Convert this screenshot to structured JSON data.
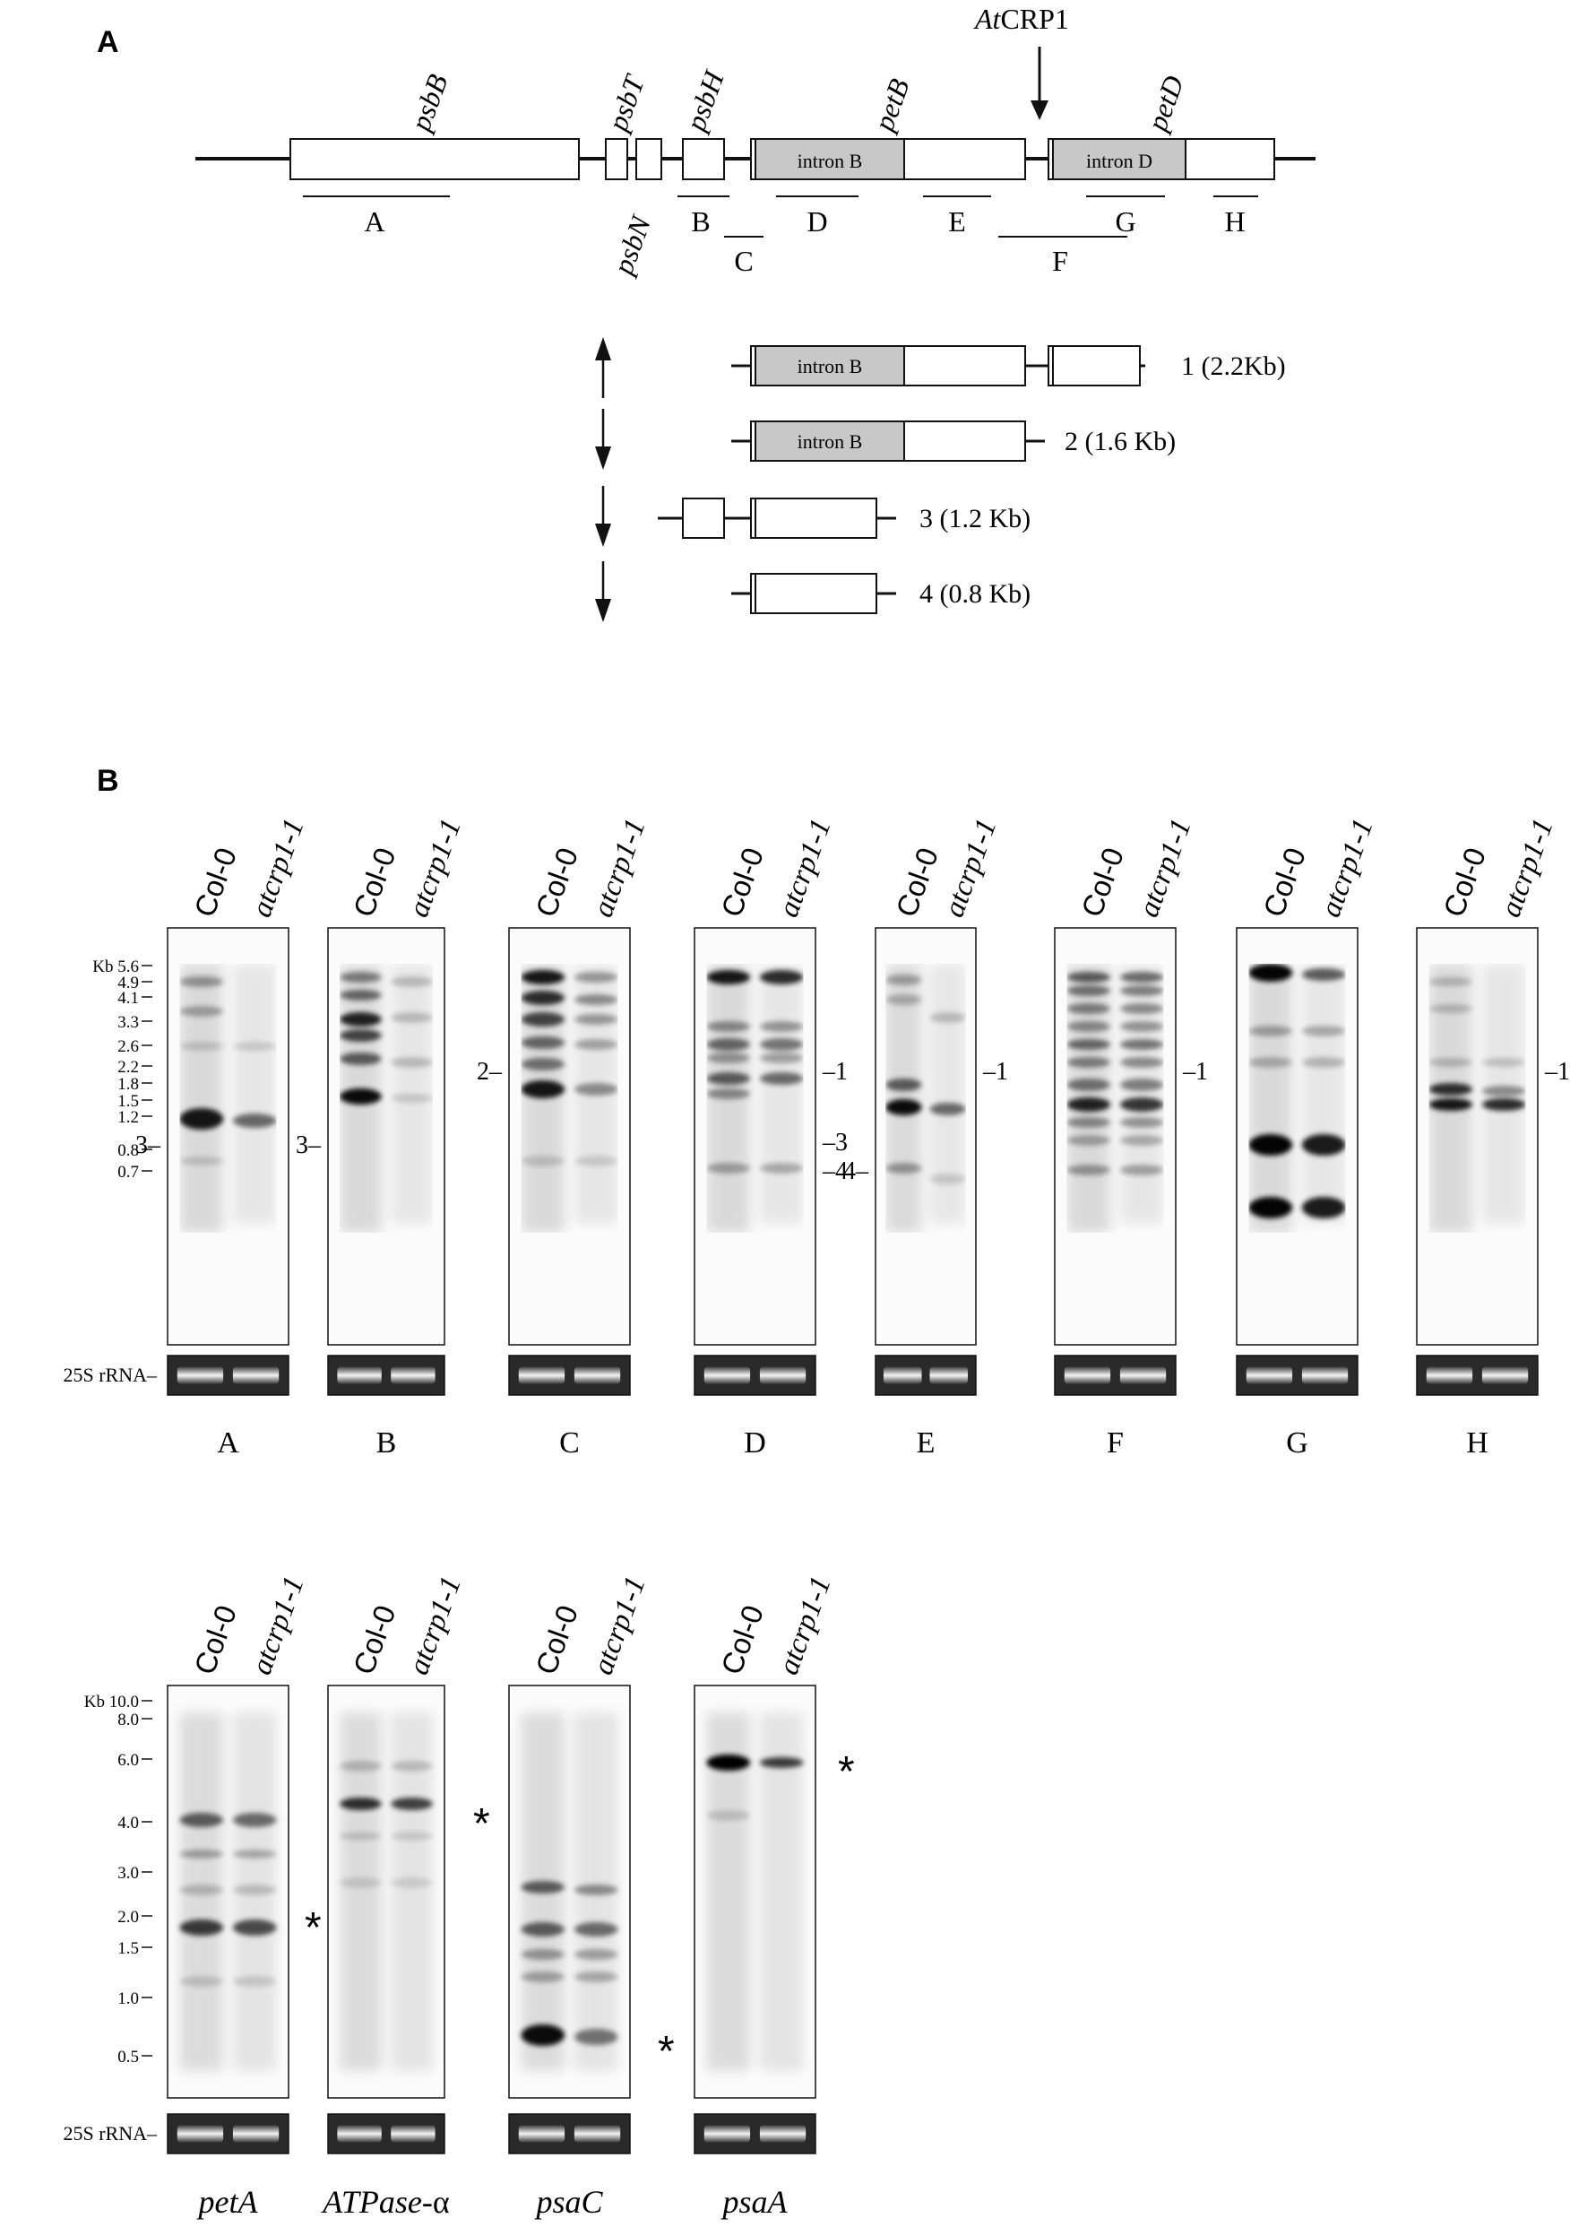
{
  "panel_a": {
    "label": "A",
    "crp_label_it": "At",
    "crp_label_rest": "CRP1",
    "genes": {
      "psbB": "psbB",
      "psbT": "psbT",
      "psbH": "psbH",
      "petB": "petB",
      "petD": "petD",
      "psbN": "psbN"
    },
    "introns": {
      "b": "intron B",
      "d": "intron D"
    },
    "probes": [
      "A",
      "B",
      "C",
      "D",
      "E",
      "F",
      "G",
      "H"
    ],
    "transcripts": [
      {
        "label": "1 (2.2Kb)"
      },
      {
        "label": "2 (1.6 Kb)"
      },
      {
        "label": "3 (1.2 Kb)"
      },
      {
        "label": "4 (0.8 Kb)"
      }
    ]
  },
  "panel_b": {
    "label": "B",
    "lane_labels": [
      "Col-0",
      "atcrp1-1"
    ],
    "rrna_label": "25S rRNA",
    "rrna_label_bottom": "25S rRNA",
    "markers_top": [
      "Kb 5.6",
      "4.9",
      "4.1",
      "3.3",
      "2.6",
      "2.2",
      "1.8",
      "1.5",
      "1.2",
      "0.8",
      "0.7"
    ],
    "markers_bottom": [
      "Kb 10.0",
      "8.0",
      "6.0",
      "4.0",
      "3.0",
      "2.0",
      "1.5",
      "1.0",
      "0.5"
    ],
    "top_blots": [
      {
        "probe": "A",
        "side_marks": [
          {
            "text": "3"
          }
        ]
      },
      {
        "probe": "B",
        "side_marks": [
          {
            "text": "3"
          }
        ]
      },
      {
        "probe": "C",
        "side_marks": [
          {
            "text": "2"
          }
        ]
      },
      {
        "probe": "D",
        "side_marks": [
          {
            "text": "1"
          },
          {
            "text": "3"
          },
          {
            "text": "4"
          }
        ]
      },
      {
        "probe": "E",
        "side_marks": [
          {
            "text": "1"
          },
          {
            "text": "4"
          }
        ]
      },
      {
        "probe": "F",
        "side_marks": [
          {
            "text": "1"
          }
        ]
      },
      {
        "probe": "G",
        "side_marks": []
      },
      {
        "probe": "H",
        "side_marks": [
          {
            "text": "1"
          }
        ]
      }
    ],
    "bottom_blots": [
      {
        "gene": "petA",
        "gene_suffix": ""
      },
      {
        "gene": "ATPase-",
        "gene_suffix": "α"
      },
      {
        "gene": "psaC",
        "gene_suffix": ""
      },
      {
        "gene": "psaA",
        "gene_suffix": ""
      }
    ],
    "asterisk": "*"
  }
}
